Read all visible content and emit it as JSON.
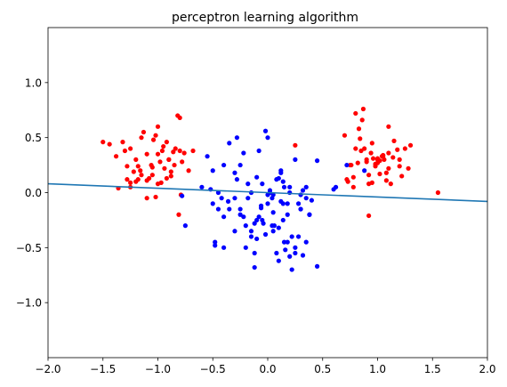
{
  "chart_data": {
    "type": "scatter",
    "title": "perceptron learning algorithm",
    "xlabel": "",
    "ylabel": "",
    "xlim": [
      -2.0,
      2.0
    ],
    "ylim": [
      -1.5,
      1.5
    ],
    "xticks": [
      -2.0,
      -1.5,
      -1.0,
      -0.5,
      0.0,
      0.5,
      1.0,
      1.5,
      2.0
    ],
    "xtick_labels": [
      "−2.0",
      "−1.5",
      "−1.0",
      "−0.5",
      "0.0",
      "0.5",
      "1.0",
      "1.5",
      "2.0"
    ],
    "yticks": [
      1.0,
      0.5,
      0.0,
      -0.5,
      -1.0
    ],
    "ytick_labels": [
      "1.0",
      "0.5",
      "0.0",
      "−0.5",
      "−1.0"
    ],
    "grid": false,
    "series": [
      {
        "color": "#ff0000",
        "x": [
          -1.5,
          -1.44,
          -1.38,
          -1.32,
          -1.28,
          -1.25,
          -1.22,
          -1.2,
          -1.18,
          -1.16,
          -1.15,
          -1.13,
          -1.1,
          -1.08,
          -1.06,
          -1.04,
          -1.02,
          -1.0,
          -0.98,
          -0.96,
          -0.94,
          -0.92,
          -0.9,
          -0.88,
          -0.86,
          -0.84,
          -0.82,
          -0.8,
          -0.78,
          -0.76,
          -0.72,
          -0.68,
          -1.2,
          -1.1,
          -1.05,
          -1.0,
          -0.95,
          -0.9,
          -0.85,
          -0.8,
          -1.3,
          -1.15,
          -1.25,
          -1.36,
          -1.02,
          -0.97,
          -0.79,
          -1.1,
          -1.25,
          -0.81,
          0.25,
          -1.0,
          -1.05,
          -0.92,
          -1.18,
          -0.88,
          -1.28,
          0.7,
          0.73,
          0.76,
          0.78,
          0.8,
          0.82,
          0.84,
          0.86,
          0.88,
          0.9,
          0.92,
          0.94,
          0.96,
          0.98,
          1.0,
          1.02,
          1.04,
          1.06,
          1.08,
          1.1,
          1.12,
          1.15,
          1.18,
          1.2,
          1.22,
          1.25,
          1.28,
          0.75,
          0.8,
          0.85,
          0.9,
          0.95,
          1.0,
          1.05,
          1.1,
          0.72,
          0.87,
          0.95,
          1.02,
          1.08,
          1.14,
          1.3,
          0.78,
          0.83,
          0.92,
          1.0,
          1.1,
          1.2,
          1.55,
          0.92,
          0.98,
          1.05
        ],
        "y": [
          0.46,
          0.44,
          0.33,
          0.46,
          0.24,
          0.4,
          0.19,
          0.3,
          0.12,
          0.2,
          0.5,
          0.55,
          0.35,
          0.13,
          0.25,
          0.48,
          0.52,
          0.35,
          0.28,
          0.38,
          0.22,
          0.46,
          0.3,
          0.15,
          0.37,
          0.4,
          0.7,
          0.38,
          0.28,
          0.36,
          0.2,
          0.38,
          0.1,
          0.11,
          0.23,
          0.6,
          0.42,
          0.3,
          0.25,
          0.68,
          0.38,
          0.16,
          0.05,
          0.04,
          -0.04,
          0.09,
          -0.02,
          -0.05,
          0.09,
          -0.2,
          0.43,
          0.08,
          0.16,
          0.13,
          0.24,
          0.19,
          0.12,
          0.52,
          0.1,
          0.25,
          0.05,
          0.4,
          0.27,
          0.49,
          0.66,
          0.4,
          0.3,
          0.08,
          0.36,
          0.31,
          0.24,
          0.27,
          0.17,
          0.33,
          0.3,
          0.11,
          0.36,
          0.08,
          0.47,
          0.39,
          0.24,
          0.15,
          0.4,
          0.22,
          0.25,
          0.72,
          0.38,
          0.28,
          0.45,
          0.3,
          0.34,
          0.6,
          0.12,
          0.76,
          0.09,
          0.29,
          0.18,
          0.32,
          0.43,
          0.14,
          0.58,
          0.16,
          0.31,
          0.22,
          0.3,
          0.0,
          -0.21,
          0.26,
          0.33
        ]
      },
      {
        "color": "#0000ff",
        "x": [
          -0.78,
          -0.75,
          -0.6,
          -0.55,
          -0.5,
          -0.48,
          -0.45,
          -0.42,
          -0.4,
          -0.35,
          -0.3,
          -0.28,
          -0.25,
          -0.22,
          -0.2,
          -0.18,
          -0.15,
          -0.12,
          -0.1,
          -0.08,
          -0.06,
          -0.04,
          -0.02,
          0.0,
          0.02,
          0.04,
          0.06,
          0.08,
          0.1,
          0.12,
          0.14,
          0.16,
          0.18,
          0.2,
          0.22,
          0.25,
          0.28,
          0.3,
          0.32,
          0.35,
          0.38,
          0.4,
          0.45,
          -0.45,
          -0.4,
          -0.35,
          -0.25,
          -0.15,
          -0.05,
          0.05,
          0.15,
          0.25,
          0.35,
          -0.3,
          -0.2,
          -0.1,
          0.0,
          0.1,
          0.2,
          0.3,
          -0.28,
          -0.18,
          -0.08,
          0.02,
          0.12,
          0.22,
          0.32,
          -0.12,
          -0.02,
          0.08,
          0.18,
          0.28,
          0.38,
          -0.22,
          -0.12,
          0.05,
          0.15,
          0.25,
          -0.06,
          0.04,
          0.14,
          -0.5,
          -0.48,
          -0.3,
          0.0,
          0.1,
          0.6,
          0.62,
          0.72,
          0.45,
          0.88,
          0.3,
          0.35,
          -0.15,
          -0.05,
          0.18,
          -0.4,
          -0.25,
          0.05,
          0.12,
          -0.1,
          0.2,
          -0.36,
          0.14,
          -0.52
        ],
        "y": [
          -0.03,
          -0.3,
          0.05,
          0.33,
          -0.1,
          -0.45,
          -0.15,
          -0.05,
          -0.5,
          0.45,
          0.18,
          0.5,
          -0.2,
          0.36,
          -0.3,
          -0.05,
          -0.4,
          -0.55,
          0.14,
          -0.22,
          -0.14,
          -0.28,
          0.56,
          -0.1,
          0.02,
          -0.05,
          -0.3,
          0.12,
          -0.62,
          0.18,
          0.1,
          -0.52,
          -0.2,
          0.05,
          -0.4,
          0.3,
          -0.1,
          -0.15,
          -0.57,
          0.05,
          -0.2,
          -0.07,
          -0.67,
          0.0,
          0.25,
          -0.15,
          0.25,
          0.0,
          0.08,
          -0.18,
          0.05,
          -0.5,
          -0.45,
          -0.35,
          -0.5,
          -0.25,
          -0.02,
          -0.32,
          -0.58,
          -0.15,
          0.12,
          0.08,
          0.38,
          0.0,
          0.2,
          -0.7,
          0.02,
          -0.68,
          -0.38,
          -0.55,
          -0.45,
          -0.4,
          -0.2,
          -0.22,
          -0.28,
          -0.35,
          -0.45,
          -0.55,
          -0.12,
          -0.3,
          -0.1,
          0.2,
          -0.48,
          -0.05,
          0.5,
          0.13,
          0.03,
          0.05,
          0.25,
          0.29,
          0.2,
          -0.02,
          -0.05,
          -0.35,
          -0.25,
          -0.1,
          -0.22,
          -0.15,
          -0.02,
          -0.08,
          -0.42,
          0.0,
          -0.08,
          -0.25,
          0.03
        ]
      },
      {
        "kind": "line",
        "color": "#1f77b4",
        "x": [
          -2.0,
          2.0
        ],
        "y": [
          0.08,
          -0.08
        ]
      }
    ]
  }
}
